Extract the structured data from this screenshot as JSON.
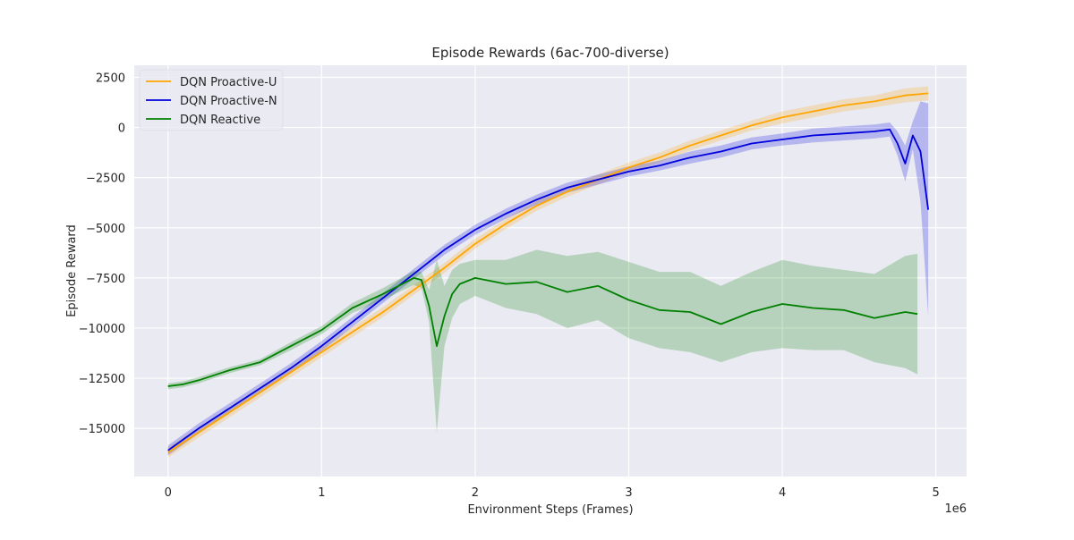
{
  "chart_data": {
    "type": "line",
    "title": "Episode Rewards (6ac-700-diverse)",
    "xlabel": "Environment Steps (Frames)",
    "ylabel": "Episode Reward",
    "x_scale_label": "1e6",
    "xlim": [
      -0.22,
      5.2
    ],
    "ylim": [
      -17400,
      3100
    ],
    "x_ticks": [
      0,
      1,
      2,
      3,
      4,
      5
    ],
    "x_tick_labels": [
      "0",
      "1",
      "2",
      "3",
      "4",
      "5"
    ],
    "y_ticks": [
      2500,
      0,
      -2500,
      -5000,
      -7500,
      -10000,
      -12500,
      -15000
    ],
    "y_tick_labels": [
      "2500",
      "0",
      "−2500",
      "−5000",
      "−7500",
      "−10000",
      "−12500",
      "−15000"
    ],
    "grid": true,
    "legend_position": "top-left",
    "background": "#eaeaf2",
    "series": [
      {
        "name": "DQN Proactive-U",
        "color": "#ffa500",
        "x": [
          0,
          0.2,
          0.4,
          0.6,
          0.8,
          1.0,
          1.2,
          1.4,
          1.6,
          1.8,
          2.0,
          2.2,
          2.4,
          2.6,
          2.8,
          3.0,
          3.2,
          3.4,
          3.6,
          3.8,
          4.0,
          4.2,
          4.4,
          4.6,
          4.8,
          4.95
        ],
        "y": [
          -16200,
          -15200,
          -14200,
          -13200,
          -12200,
          -11200,
          -10200,
          -9200,
          -8100,
          -7000,
          -5800,
          -4800,
          -3900,
          -3200,
          -2600,
          -2000,
          -1500,
          -900,
          -400,
          100,
          500,
          800,
          1100,
          1300,
          1600,
          1700
        ],
        "band": [
          250,
          250,
          250,
          250,
          250,
          250,
          250,
          250,
          250,
          250,
          250,
          250,
          250,
          250,
          250,
          250,
          250,
          250,
          250,
          250,
          300,
          300,
          300,
          300,
          350,
          350
        ]
      },
      {
        "name": "DQN Proactive-N",
        "color": "#0000dd",
        "x": [
          0,
          0.2,
          0.4,
          0.6,
          0.8,
          1.0,
          1.2,
          1.4,
          1.6,
          1.8,
          2.0,
          2.2,
          2.4,
          2.6,
          2.8,
          3.0,
          3.2,
          3.4,
          3.6,
          3.8,
          4.0,
          4.2,
          4.4,
          4.6,
          4.7,
          4.75,
          4.8,
          4.85,
          4.9,
          4.95
        ],
        "y": [
          -16100,
          -15000,
          -14000,
          -13000,
          -12000,
          -10900,
          -9700,
          -8500,
          -7300,
          -6100,
          -5100,
          -4300,
          -3600,
          -3000,
          -2600,
          -2200,
          -1900,
          -1500,
          -1200,
          -800,
          -600,
          -400,
          -300,
          -200,
          -100,
          -800,
          -1800,
          -400,
          -1200,
          -4100
        ],
        "band": [
          250,
          250,
          250,
          250,
          250,
          250,
          250,
          250,
          250,
          250,
          250,
          250,
          250,
          250,
          250,
          250,
          250,
          300,
          300,
          300,
          300,
          350,
          350,
          350,
          350,
          600,
          900,
          700,
          2500,
          5300
        ]
      },
      {
        "name": "DQN Reactive",
        "color": "#008000",
        "x": [
          0,
          0.1,
          0.2,
          0.4,
          0.6,
          0.8,
          1.0,
          1.2,
          1.4,
          1.6,
          1.65,
          1.7,
          1.75,
          1.8,
          1.85,
          1.9,
          2.0,
          2.2,
          2.4,
          2.6,
          2.8,
          3.0,
          3.2,
          3.4,
          3.6,
          3.8,
          4.0,
          4.2,
          4.4,
          4.6,
          4.8,
          4.88
        ],
        "y": [
          -12900,
          -12800,
          -12600,
          -12100,
          -11700,
          -10900,
          -10100,
          -9000,
          -8300,
          -7500,
          -7600,
          -8900,
          -10900,
          -9400,
          -8300,
          -7800,
          -7500,
          -7800,
          -7700,
          -8200,
          -7900,
          -8600,
          -9100,
          -9200,
          -9800,
          -9200,
          -8800,
          -9000,
          -9100,
          -9500,
          -9200,
          -9300
        ],
        "band": [
          150,
          150,
          150,
          150,
          150,
          200,
          200,
          250,
          300,
          350,
          400,
          800,
          4300,
          1500,
          1200,
          1000,
          900,
          1200,
          1600,
          1800,
          1700,
          1900,
          1900,
          2000,
          1900,
          2000,
          2200,
          2100,
          2000,
          2200,
          2800,
          3000
        ]
      }
    ]
  }
}
